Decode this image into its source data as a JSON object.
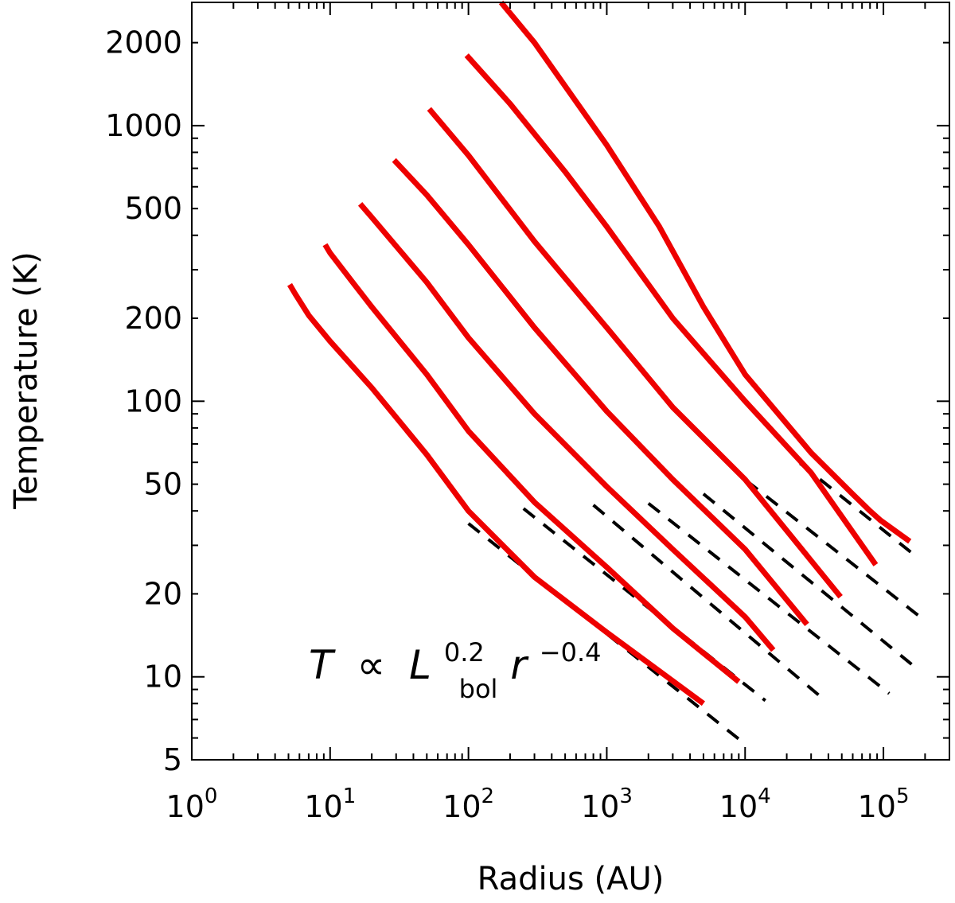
{
  "chart_data": {
    "type": "line",
    "title": "",
    "xlabel": "Radius (AU)",
    "ylabel": "Temperature (K)",
    "xscale": "log",
    "yscale": "log",
    "xlim": [
      1,
      300000
    ],
    "ylim": [
      5,
      2800
    ],
    "x_ticks": [
      {
        "value": 1,
        "base": "10",
        "exp": "0"
      },
      {
        "value": 10,
        "base": "10",
        "exp": "1"
      },
      {
        "value": 100,
        "base": "10",
        "exp": "2"
      },
      {
        "value": 1000,
        "base": "10",
        "exp": "3"
      },
      {
        "value": 10000,
        "base": "10",
        "exp": "4"
      },
      {
        "value": 100000,
        "base": "10",
        "exp": "5"
      }
    ],
    "y_ticks": [
      {
        "value": 5,
        "label": "5"
      },
      {
        "value": 10,
        "label": "10"
      },
      {
        "value": 20,
        "label": "20"
      },
      {
        "value": 50,
        "label": "50"
      },
      {
        "value": 100,
        "label": "100"
      },
      {
        "value": 200,
        "label": "200"
      },
      {
        "value": 500,
        "label": "500"
      },
      {
        "value": 1000,
        "label": "1000"
      },
      {
        "value": 2000,
        "label": "2000"
      }
    ],
    "annotation": {
      "T": "T",
      "prop": "∝",
      "L": "L",
      "L_sub": "bol",
      "L_sup": "0.2",
      "r": "r",
      "r_sup": "−0.4"
    },
    "colors": {
      "model": "#ee0000",
      "power_law": "#000000"
    },
    "series": [
      {
        "style": "solid",
        "x": [
          5.1,
          5.6,
          7,
          10,
          20,
          50,
          100,
          300,
          1000,
          5000
        ],
        "y": [
          265,
          245,
          205,
          165,
          112,
          64,
          40,
          23,
          14.5,
          8
        ]
      },
      {
        "style": "solid",
        "x": [
          9.2,
          10,
          15,
          20,
          50,
          100,
          300,
          1000,
          3000,
          9000
        ],
        "y": [
          370,
          345,
          265,
          220,
          125,
          78,
          43,
          25,
          15,
          9.6
        ]
      },
      {
        "style": "solid",
        "x": [
          16.5,
          20,
          50,
          100,
          300,
          1000,
          3000,
          10000,
          16000
        ],
        "y": [
          520,
          465,
          270,
          170,
          90,
          49,
          29,
          16.5,
          12.5
        ]
      },
      {
        "style": "solid",
        "x": [
          29,
          50,
          100,
          300,
          1000,
          3000,
          10000,
          28000
        ],
        "y": [
          750,
          560,
          370,
          185,
          92,
          52,
          29,
          15.5
        ]
      },
      {
        "style": "solid",
        "x": [
          52,
          100,
          300,
          1000,
          3000,
          10000,
          49000
        ],
        "y": [
          1150,
          780,
          380,
          185,
          95,
          52,
          19.5
        ]
      },
      {
        "style": "solid",
        "x": [
          97,
          200,
          500,
          1000,
          3000,
          10000,
          30000,
          88000
        ],
        "y": [
          1800,
          1200,
          680,
          430,
          200,
          100,
          55,
          25.5
        ]
      },
      {
        "style": "solid",
        "x": [
          172,
          300,
          1000,
          2400,
          5000,
          10000,
          30000,
          60000,
          80000,
          95000,
          155000
        ],
        "y": [
          2800,
          2000,
          850,
          430,
          220,
          125,
          65,
          46,
          40,
          37,
          31
        ]
      },
      {
        "style": "dashed",
        "x": [
          100,
          10000
        ],
        "y": [
          36,
          5.7
        ]
      },
      {
        "style": "dashed",
        "x": [
          250,
          14000
        ],
        "y": [
          40.8,
          8.2
        ]
      },
      {
        "style": "dashed",
        "x": [
          800,
          38000
        ],
        "y": [
          42.0,
          8.2
        ]
      },
      {
        "style": "dashed",
        "x": [
          2000,
          110000
        ],
        "y": [
          42.6,
          8.7
        ]
      },
      {
        "style": "dashed",
        "x": [
          5000,
          160000
        ],
        "y": [
          46.1,
          11.1
        ]
      },
      {
        "style": "dashed",
        "x": [
          10200,
          190000
        ],
        "y": [
          51.5,
          16.3
        ]
      },
      {
        "style": "dashed",
        "x": [
          25000,
          170000
        ],
        "y": [
          59.5,
          27.5
        ]
      }
    ]
  }
}
